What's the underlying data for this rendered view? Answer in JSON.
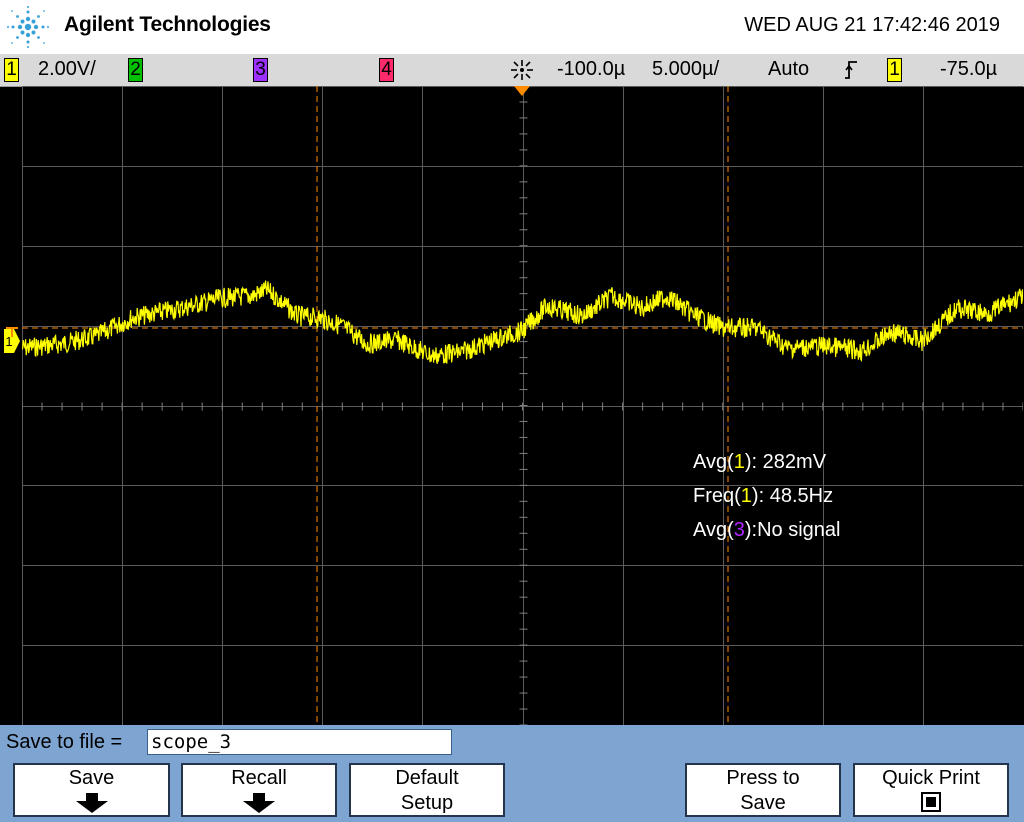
{
  "header": {
    "brand": "Agilent Technologies",
    "datetime": "WED AUG 21 17:42:46 2019",
    "logo_icon": "agilent-spark-icon"
  },
  "statusbar": {
    "ch1": {
      "num": "1",
      "scale": "2.00V/",
      "color": "#ffff00"
    },
    "ch2": {
      "num": "2",
      "color": "#00c000"
    },
    "ch3": {
      "num": "3",
      "color": "#9b30ff"
    },
    "ch4": {
      "num": "4",
      "color": "#ff2a6a"
    },
    "acq_icon": "acquisition-icon",
    "delay": "-100.0µ",
    "timebase": "5.000µ/",
    "trigger_mode": "Auto",
    "trigger_slope_icon": "rising-edge-icon",
    "trigger_source": "1",
    "trigger_level": "-75.0µ"
  },
  "measurements": {
    "avg1_label": "Avg(",
    "avg1_ch": "1",
    "avg1_value": "): 282mV",
    "freq1_label": "Freq(",
    "freq1_ch": "1",
    "freq1_value": "): 48.5Hz",
    "avg3_label": "Avg(",
    "avg3_ch": "3",
    "avg3_value": "):No signal"
  },
  "softkeys": {
    "save_to_file_label": "Save to file =",
    "file_name": "scope_3",
    "save": "Save",
    "recall": "Recall",
    "default_line1": "Default",
    "default_line2": "Setup",
    "press_line1": "Press to",
    "press_line2": "Save",
    "quick_print": "Quick Print"
  },
  "colors": {
    "trace": "#ffff00",
    "grid": "#5a5a5a",
    "cursor": "#ff8c00",
    "softbar": "#7ea4d1"
  }
}
